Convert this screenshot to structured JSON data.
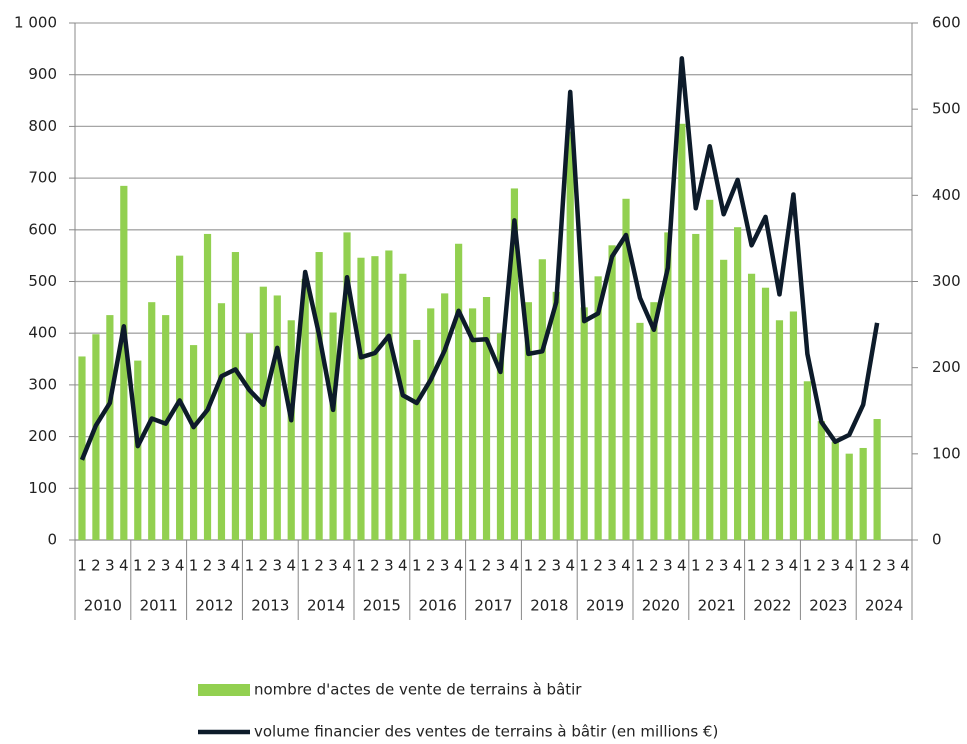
{
  "chart_data": {
    "type": "bar-line",
    "categories": [
      "1",
      "2",
      "3",
      "4",
      "1",
      "2",
      "3",
      "4",
      "1",
      "2",
      "3",
      "4",
      "1",
      "2",
      "3",
      "4",
      "1",
      "2",
      "3",
      "4",
      "1",
      "2",
      "3",
      "4",
      "1",
      "2",
      "3",
      "4",
      "1",
      "2",
      "3",
      "4",
      "1",
      "2",
      "3",
      "4",
      "1",
      "2",
      "3",
      "4",
      "1",
      "2",
      "3",
      "4",
      "1",
      "2",
      "3",
      "4",
      "1",
      "2",
      "3",
      "4",
      "1",
      "2",
      "3",
      "4",
      "1",
      "2",
      "3",
      "4"
    ],
    "groups": [
      "2010",
      "2011",
      "2012",
      "2013",
      "2014",
      "2015",
      "2016",
      "2017",
      "2018",
      "2019",
      "2020",
      "2021",
      "2022",
      "2023",
      "2024"
    ],
    "series": [
      {
        "name": "nombre d'actes de vente de terrains à bâtir",
        "type": "bar",
        "color": "#92d050",
        "values": [
          355,
          398,
          435,
          685,
          347,
          460,
          435,
          550,
          377,
          592,
          458,
          557,
          400,
          490,
          473,
          425,
          505,
          557,
          440,
          595,
          546,
          549,
          560,
          515,
          387,
          448,
          477,
          573,
          448,
          470,
          400,
          680,
          460,
          543,
          480,
          790,
          450,
          510,
          570,
          660,
          420,
          460,
          595,
          805,
          592,
          658,
          542,
          605,
          515,
          488,
          425,
          442,
          307,
          230,
          190,
          167,
          178,
          234,
          null,
          null
        ]
      },
      {
        "name": "volume financier des ventes de terrains à bâtir  (en millions €)",
        "type": "line",
        "axis": "y2",
        "color": "#0d1b2a",
        "values": [
          93,
          133,
          159,
          248,
          109,
          141,
          135,
          162,
          131,
          151,
          190,
          198,
          174,
          157,
          223,
          139,
          311,
          238,
          151,
          305,
          212,
          217,
          237,
          168,
          159,
          186,
          220,
          266,
          232,
          233,
          195,
          371,
          216,
          219,
          276,
          520,
          254,
          263,
          329,
          354,
          281,
          244,
          316,
          559,
          385,
          457,
          378,
          418,
          342,
          375,
          285,
          401,
          216,
          137,
          114,
          122,
          157,
          252,
          null,
          null
        ]
      }
    ],
    "ylim": [
      0,
      1000
    ],
    "yticks": [
      0,
      100,
      200,
      300,
      400,
      500,
      600,
      700,
      800,
      900,
      {
        "value": 1000,
        "label": "1 000"
      }
    ],
    "y2lim": [
      0,
      600
    ],
    "y2ticks": [
      0,
      100,
      200,
      300,
      400,
      500,
      600
    ],
    "grid": true
  }
}
